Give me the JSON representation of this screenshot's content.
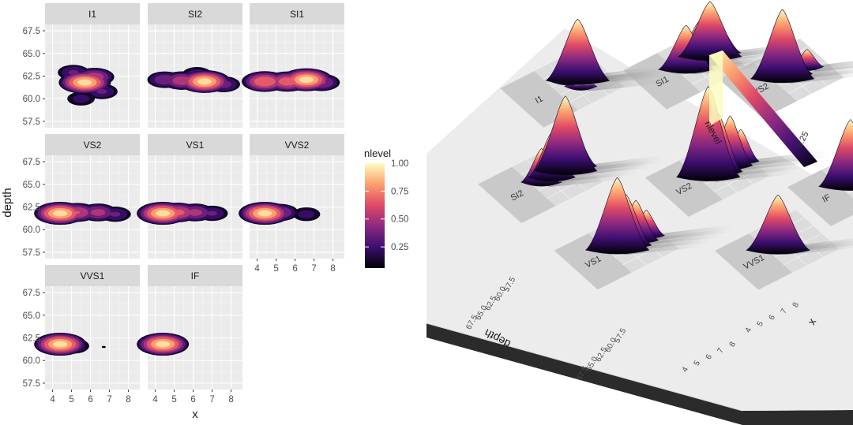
{
  "chart_data": {
    "type": "heatmap",
    "kind": "faceted 2D density contour (filled) by clarity",
    "xlabel": "x",
    "ylabel": "depth",
    "xlim": [
      3.6,
      8.6
    ],
    "ylim": [
      56.8,
      68.2
    ],
    "x_ticks": [
      4,
      5,
      6,
      7,
      8
    ],
    "y_ticks": [
      57.5,
      60.0,
      62.5,
      65.0,
      67.5
    ],
    "x_tick_labels": [
      "4",
      "5",
      "6",
      "7",
      "8"
    ],
    "y_tick_labels": [
      "57.5",
      "60.0",
      "62.5",
      "65.0",
      "67.5"
    ],
    "grid": true,
    "legend": {
      "title": "nlevel",
      "position": "right",
      "ticks": [
        "1.00",
        "0.75",
        "0.50",
        "0.25"
      ],
      "tick_values": [
        1.0,
        0.75,
        0.5,
        0.25
      ],
      "gradient": [
        "#000004",
        "#3b0f70",
        "#8c2981",
        "#de4968",
        "#fe9f6d",
        "#fcfdbf"
      ]
    },
    "facets": [
      {
        "name": "I1",
        "peaks": [
          {
            "x": 5.7,
            "y": 61.8,
            "h": 1.0
          },
          {
            "x": 6.2,
            "y": 62.4,
            "h": 0.6
          },
          {
            "x": 5.1,
            "y": 62.9,
            "h": 0.35
          },
          {
            "x": 6.6,
            "y": 60.8,
            "h": 0.35
          },
          {
            "x": 5.5,
            "y": 60.0,
            "h": 0.25
          }
        ]
      },
      {
        "name": "SI2",
        "peaks": [
          {
            "x": 6.6,
            "y": 61.9,
            "h": 1.0
          },
          {
            "x": 5.4,
            "y": 62.0,
            "h": 0.6
          },
          {
            "x": 4.5,
            "y": 62.1,
            "h": 0.45
          },
          {
            "x": 7.6,
            "y": 61.6,
            "h": 0.4
          },
          {
            "x": 6.2,
            "y": 62.7,
            "h": 0.3
          }
        ]
      },
      {
        "name": "SI1",
        "peaks": [
          {
            "x": 6.6,
            "y": 62.1,
            "h": 1.0
          },
          {
            "x": 4.4,
            "y": 61.9,
            "h": 0.8
          },
          {
            "x": 5.6,
            "y": 61.9,
            "h": 0.75
          },
          {
            "x": 7.4,
            "y": 61.8,
            "h": 0.5
          },
          {
            "x": 5.0,
            "y": 62.0,
            "h": 0.4
          }
        ]
      },
      {
        "name": "VS2",
        "peaks": [
          {
            "x": 4.4,
            "y": 61.8,
            "h": 1.0
          },
          {
            "x": 5.3,
            "y": 61.9,
            "h": 0.65
          },
          {
            "x": 6.4,
            "y": 61.9,
            "h": 0.55
          },
          {
            "x": 7.3,
            "y": 61.7,
            "h": 0.35
          }
        ]
      },
      {
        "name": "VS1",
        "peaks": [
          {
            "x": 4.4,
            "y": 61.8,
            "h": 1.0
          },
          {
            "x": 5.2,
            "y": 61.9,
            "h": 0.7
          },
          {
            "x": 6.1,
            "y": 61.9,
            "h": 0.55
          },
          {
            "x": 7.0,
            "y": 61.8,
            "h": 0.35
          }
        ]
      },
      {
        "name": "VVS2",
        "peaks": [
          {
            "x": 4.4,
            "y": 61.8,
            "h": 1.0
          },
          {
            "x": 5.2,
            "y": 61.9,
            "h": 0.5
          },
          {
            "x": 6.6,
            "y": 61.7,
            "h": 0.25
          }
        ]
      },
      {
        "name": "VVS1",
        "peaks": [
          {
            "x": 4.4,
            "y": 61.8,
            "h": 1.0
          },
          {
            "x": 5.1,
            "y": 61.6,
            "h": 0.35
          }
        ],
        "specks": [
          {
            "x": 6.7,
            "y": 61.5
          }
        ]
      },
      {
        "name": "IF",
        "peaks": [
          {
            "x": 4.4,
            "y": 61.8,
            "h": 1.0
          },
          {
            "x": 4.9,
            "y": 61.7,
            "h": 0.3
          }
        ]
      }
    ]
  }
}
